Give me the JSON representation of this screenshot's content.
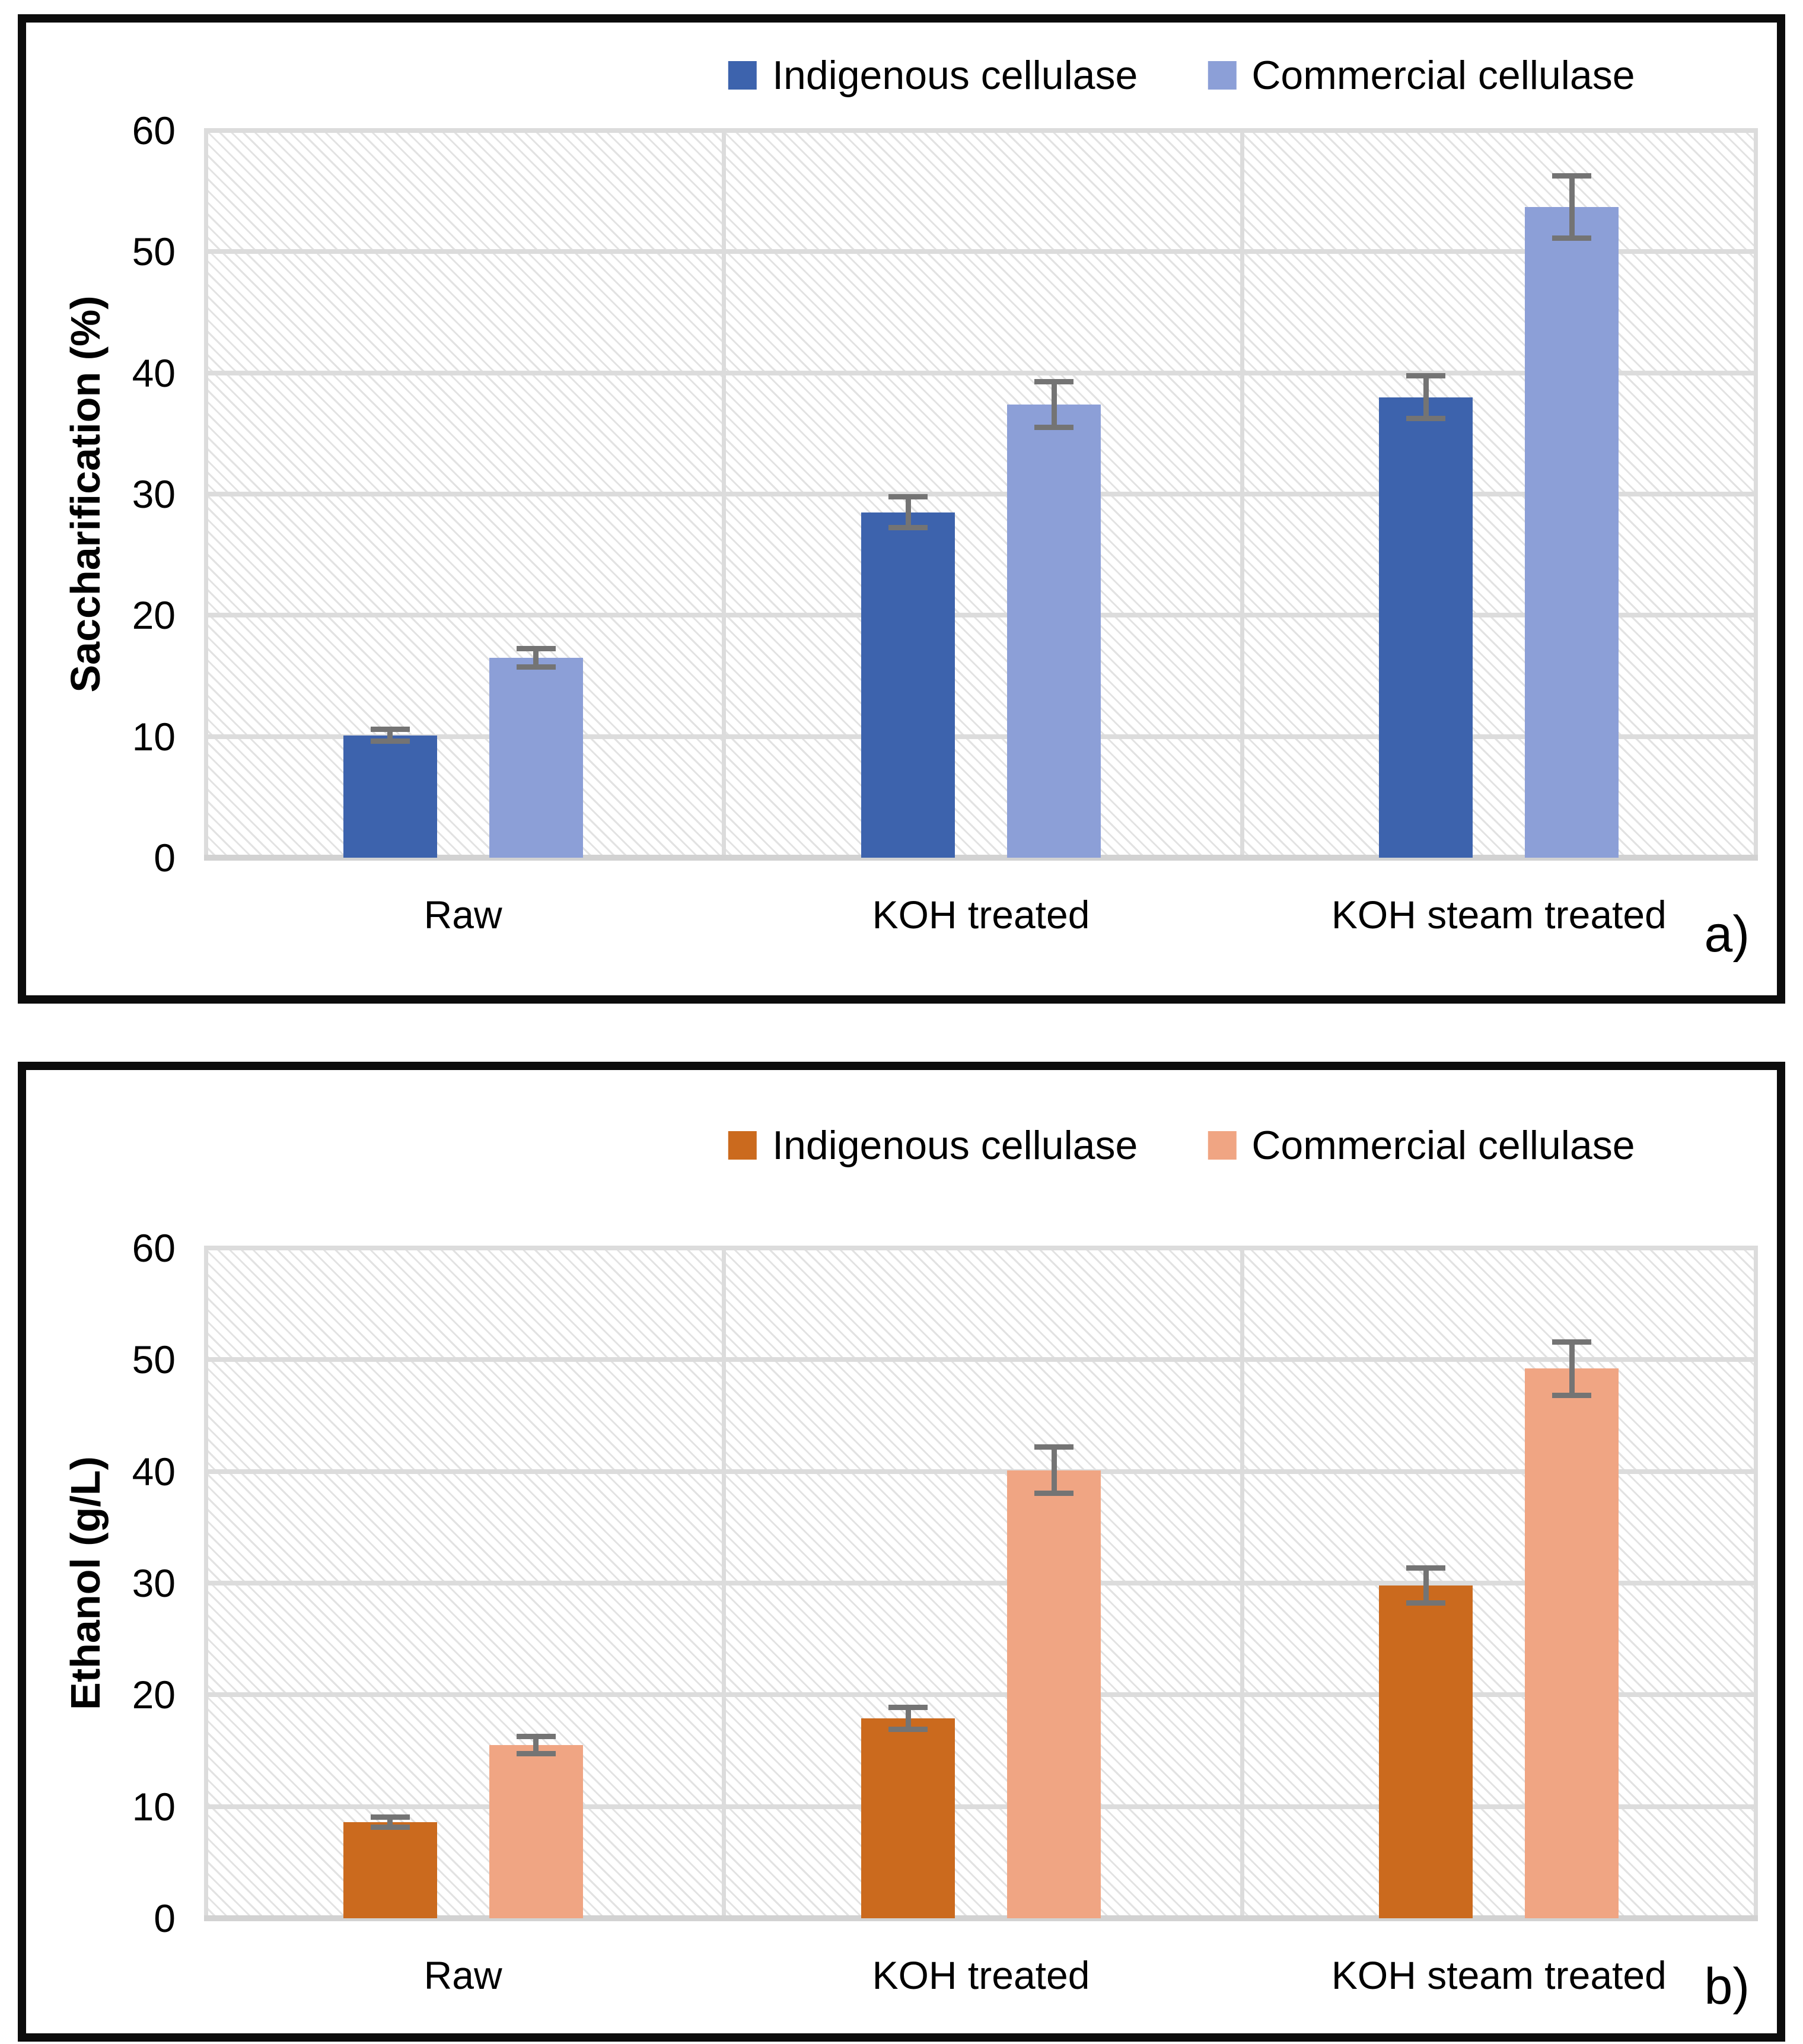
{
  "chart_data": [
    {
      "type": "bar",
      "panel_label": "a)",
      "title": "",
      "xlabel": "",
      "ylabel": "Saccharification (%)",
      "ylim": [
        0,
        60
      ],
      "yticks": [
        0,
        10,
        20,
        30,
        40,
        50,
        60
      ],
      "grid": true,
      "legend_position": "top",
      "categories": [
        "Raw",
        "KOH treated",
        "KOH steam treated"
      ],
      "series": [
        {
          "name": "Indigenous cellulase",
          "color": "#3d63ad",
          "values": [
            10.1,
            28.5,
            38.0
          ],
          "errors": [
            0.5,
            1.3,
            1.8
          ]
        },
        {
          "name": "Commercial cellulase",
          "color": "#8c9fd7",
          "values": [
            16.5,
            37.4,
            53.7
          ],
          "errors": [
            0.8,
            1.9,
            2.6
          ]
        }
      ]
    },
    {
      "type": "bar",
      "panel_label": "b)",
      "title": "",
      "xlabel": "",
      "ylabel": "Ethanol (g/L)",
      "ylim": [
        0,
        60
      ],
      "yticks": [
        0,
        10,
        20,
        30,
        40,
        50,
        60
      ],
      "grid": true,
      "legend_position": "top",
      "categories": [
        "Raw",
        "KOH treated",
        "KOH steam treated"
      ],
      "series": [
        {
          "name": "Indigenous cellulase",
          "color": "#cb6a1e",
          "values": [
            8.6,
            17.9,
            29.8
          ],
          "errors": [
            0.5,
            1.0,
            1.6
          ]
        },
        {
          "name": "Commercial cellulase",
          "color": "#f0a583",
          "values": [
            15.5,
            40.1,
            49.2
          ],
          "errors": [
            0.8,
            2.1,
            2.4
          ]
        }
      ]
    }
  ],
  "style": {
    "error_bar_color": "#747474",
    "gridline_color": "#dcdcdc",
    "hatch_color": "#e2e2e2",
    "panel_border_color": "#0c0c0c"
  }
}
